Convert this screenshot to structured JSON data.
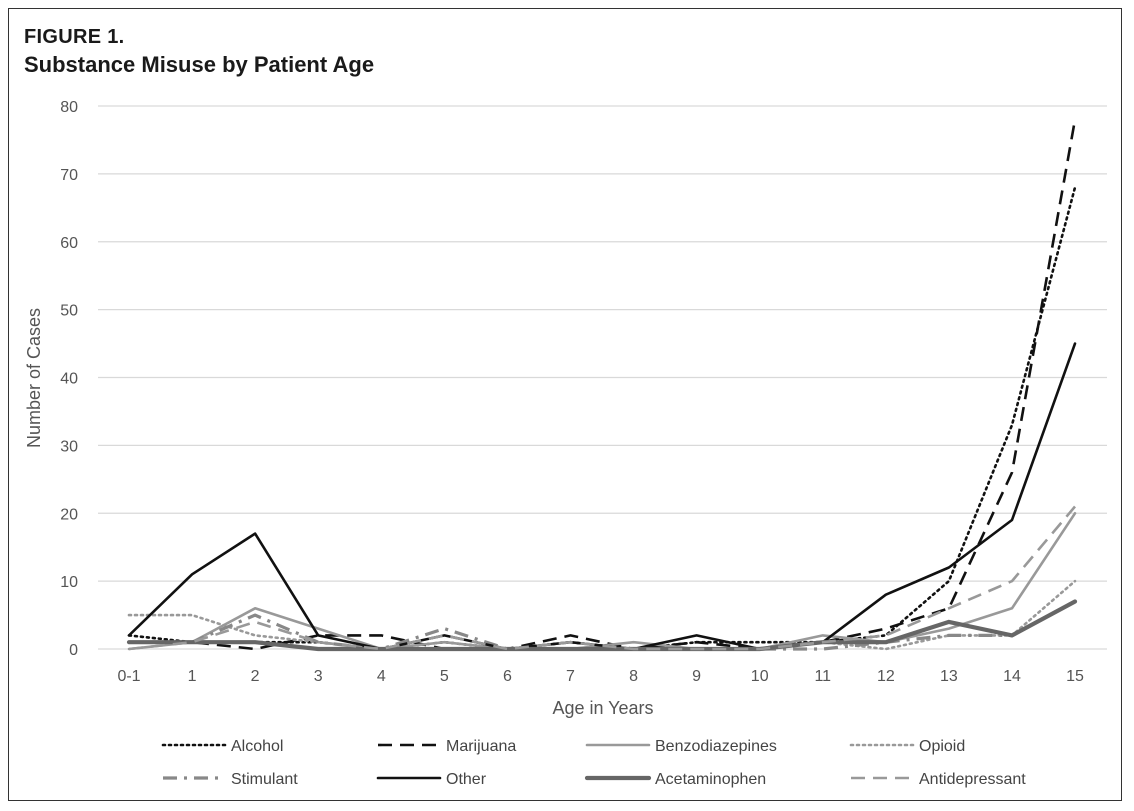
{
  "figure": {
    "label": "FIGURE 1.",
    "title": "Substance Misuse by Patient Age"
  },
  "chart_data": {
    "type": "line",
    "title": "Substance Misuse by Patient Age",
    "xlabel": "Age in Years",
    "ylabel": "Number of Cases",
    "categories": [
      "0-1",
      "1",
      "2",
      "3",
      "4",
      "5",
      "6",
      "7",
      "8",
      "9",
      "10",
      "11",
      "12",
      "13",
      "14",
      "15"
    ],
    "ylim": [
      0,
      80
    ],
    "yticks": [
      0,
      10,
      20,
      30,
      40,
      50,
      60,
      70,
      80
    ],
    "grid": "horizontal",
    "legend_position": "bottom",
    "series": [
      {
        "name": "Alcohol",
        "style": "dotted",
        "color": "#111111",
        "values": [
          2,
          1,
          1,
          1,
          0,
          1,
          0,
          1,
          0,
          1,
          1,
          1,
          2,
          10,
          33,
          68
        ]
      },
      {
        "name": "Marijuana",
        "style": "dashed",
        "color": "#111111",
        "values": [
          1,
          1,
          0,
          2,
          2,
          0,
          0,
          2,
          0,
          1,
          0,
          1,
          3,
          6,
          26,
          78
        ]
      },
      {
        "name": "Benzodiazepines",
        "style": "solid",
        "color": "#999999",
        "values": [
          0,
          1,
          6,
          3,
          0,
          1,
          0,
          0,
          1,
          0,
          0,
          2,
          1,
          3,
          6,
          20
        ]
      },
      {
        "name": "Opioid",
        "style": "dotted",
        "color": "#999999",
        "values": [
          5,
          5,
          2,
          1,
          0,
          0,
          0,
          0,
          0,
          0,
          0,
          1,
          0,
          2,
          2,
          10
        ]
      },
      {
        "name": "Stimulant",
        "style": "dashdot",
        "color": "#888888",
        "values": [
          1,
          1,
          5,
          1,
          0,
          3,
          0,
          0,
          0,
          0,
          0,
          0,
          1,
          2,
          2,
          7
        ]
      },
      {
        "name": "Other",
        "style": "solid",
        "color": "#111111",
        "values": [
          2,
          11,
          17,
          2,
          0,
          2,
          0,
          1,
          0,
          2,
          0,
          1,
          8,
          12,
          19,
          45
        ]
      },
      {
        "name": "Acetaminophen",
        "style": "solid-thick",
        "color": "#666666",
        "values": [
          1,
          1,
          1,
          0,
          0,
          0,
          0,
          0,
          0,
          0,
          0,
          1,
          1,
          4,
          2,
          7
        ]
      },
      {
        "name": "Antidepressant",
        "style": "dashed",
        "color": "#999999",
        "values": [
          0,
          1,
          4,
          1,
          0,
          2,
          0,
          1,
          0,
          0,
          0,
          1,
          2,
          6,
          10,
          21
        ]
      }
    ]
  }
}
